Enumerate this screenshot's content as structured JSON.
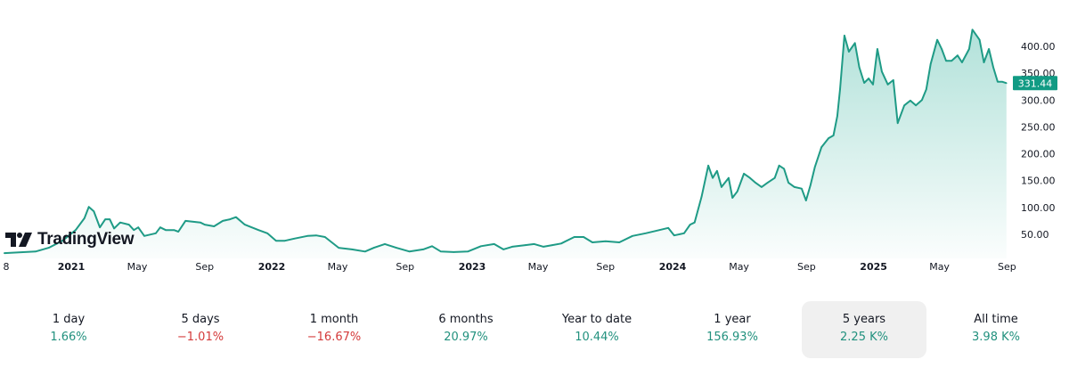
{
  "logo": {
    "text": "TradingView"
  },
  "colors": {
    "line": "#1f9b86",
    "fill": "#22ab94",
    "up": "#22917e",
    "down": "#d43a3a",
    "last_price_bg": "#119b84"
  },
  "chart_data": {
    "type": "area",
    "x_ticks": [
      {
        "label": "8",
        "date": "2020-09-01",
        "bold": false
      },
      {
        "label": "2021",
        "date": "2021-01-01",
        "bold": true
      },
      {
        "label": "May",
        "date": "2021-05-01",
        "bold": false
      },
      {
        "label": "Sep",
        "date": "2021-09-01",
        "bold": false
      },
      {
        "label": "2022",
        "date": "2022-01-01",
        "bold": true
      },
      {
        "label": "May",
        "date": "2022-05-01",
        "bold": false
      },
      {
        "label": "Sep",
        "date": "2022-09-01",
        "bold": false
      },
      {
        "label": "2023",
        "date": "2023-01-01",
        "bold": true
      },
      {
        "label": "May",
        "date": "2023-05-01",
        "bold": false
      },
      {
        "label": "Sep",
        "date": "2023-09-01",
        "bold": false
      },
      {
        "label": "2024",
        "date": "2024-01-01",
        "bold": true
      },
      {
        "label": "May",
        "date": "2024-05-01",
        "bold": false
      },
      {
        "label": "Sep",
        "date": "2024-09-01",
        "bold": false
      },
      {
        "label": "2025",
        "date": "2025-01-01",
        "bold": true
      },
      {
        "label": "May",
        "date": "2025-05-01",
        "bold": false
      },
      {
        "label": "Sep",
        "date": "2025-09-01",
        "bold": false
      }
    ],
    "y_ticks": [
      "50.00",
      "100.00",
      "150.00",
      "200.00",
      "250.00",
      "300.00",
      "350.00",
      "400.00"
    ],
    "ylim": [
      0,
      450
    ],
    "last_price": "331.44",
    "grid": false,
    "series": [
      {
        "points": [
          [
            "2020-09-01",
            15
          ],
          [
            "2020-10-28",
            18
          ],
          [
            "2020-11-21",
            25
          ],
          [
            "2020-12-16",
            38
          ],
          [
            "2021-01-09",
            58
          ],
          [
            "2021-01-25",
            80
          ],
          [
            "2021-02-02",
            101
          ],
          [
            "2021-02-11",
            93
          ],
          [
            "2021-02-22",
            63
          ],
          [
            "2021-03-04",
            78
          ],
          [
            "2021-03-12",
            78
          ],
          [
            "2021-03-20",
            61
          ],
          [
            "2021-03-31",
            72
          ],
          [
            "2021-04-16",
            68
          ],
          [
            "2021-04-25",
            58
          ],
          [
            "2021-05-03",
            63
          ],
          [
            "2021-05-14",
            47
          ],
          [
            "2021-06-04",
            52
          ],
          [
            "2021-06-12",
            63
          ],
          [
            "2021-06-22",
            58
          ],
          [
            "2021-07-07",
            58
          ],
          [
            "2021-07-15",
            55
          ],
          [
            "2021-07-28",
            75
          ],
          [
            "2021-08-24",
            72
          ],
          [
            "2021-09-01",
            68
          ],
          [
            "2021-09-18",
            65
          ],
          [
            "2021-10-04",
            75
          ],
          [
            "2021-10-17",
            78
          ],
          [
            "2021-10-28",
            82
          ],
          [
            "2021-11-13",
            68
          ],
          [
            "2021-12-08",
            58
          ],
          [
            "2021-12-24",
            52
          ],
          [
            "2022-01-09",
            38
          ],
          [
            "2022-01-25",
            38
          ],
          [
            "2022-02-11",
            42
          ],
          [
            "2022-03-07",
            47
          ],
          [
            "2022-03-23",
            48
          ],
          [
            "2022-04-08",
            45
          ],
          [
            "2022-05-03",
            25
          ],
          [
            "2022-05-27",
            22
          ],
          [
            "2022-06-20",
            18
          ],
          [
            "2022-07-06",
            25
          ],
          [
            "2022-07-26",
            32
          ],
          [
            "2022-08-16",
            25
          ],
          [
            "2022-09-09",
            18
          ],
          [
            "2022-10-04",
            22
          ],
          [
            "2022-10-20",
            28
          ],
          [
            "2022-11-05",
            18
          ],
          [
            "2022-11-29",
            17
          ],
          [
            "2022-12-24",
            18
          ],
          [
            "2023-01-17",
            28
          ],
          [
            "2023-02-10",
            32
          ],
          [
            "2023-02-27",
            22
          ],
          [
            "2023-03-15",
            27
          ],
          [
            "2023-04-08",
            30
          ],
          [
            "2023-04-24",
            32
          ],
          [
            "2023-05-11",
            27
          ],
          [
            "2023-05-27",
            30
          ],
          [
            "2023-06-12",
            33
          ],
          [
            "2023-07-06",
            45
          ],
          [
            "2023-07-23",
            45
          ],
          [
            "2023-08-08",
            35
          ],
          [
            "2023-09-01",
            37
          ],
          [
            "2023-09-26",
            35
          ],
          [
            "2023-10-20",
            47
          ],
          [
            "2023-11-13",
            52
          ],
          [
            "2023-12-08",
            58
          ],
          [
            "2023-12-24",
            62
          ],
          [
            "2024-01-04",
            48
          ],
          [
            "2024-01-22",
            52
          ],
          [
            "2024-02-02",
            68
          ],
          [
            "2024-02-10",
            72
          ],
          [
            "2024-02-23",
            121
          ],
          [
            "2024-03-06",
            178
          ],
          [
            "2024-03-14",
            155
          ],
          [
            "2024-03-22",
            168
          ],
          [
            "2024-03-30",
            138
          ],
          [
            "2024-04-12",
            155
          ],
          [
            "2024-04-19",
            118
          ],
          [
            "2024-04-28",
            130
          ],
          [
            "2024-05-10",
            163
          ],
          [
            "2024-05-21",
            155
          ],
          [
            "2024-05-31",
            146
          ],
          [
            "2024-06-11",
            138
          ],
          [
            "2024-06-22",
            146
          ],
          [
            "2024-07-05",
            155
          ],
          [
            "2024-07-13",
            178
          ],
          [
            "2024-07-22",
            172
          ],
          [
            "2024-07-30",
            146
          ],
          [
            "2024-08-10",
            138
          ],
          [
            "2024-08-23",
            135
          ],
          [
            "2024-08-31",
            113
          ],
          [
            "2024-09-08",
            141
          ],
          [
            "2024-09-16",
            175
          ],
          [
            "2024-09-28",
            212
          ],
          [
            "2024-10-11",
            229
          ],
          [
            "2024-10-20",
            234
          ],
          [
            "2024-10-27",
            270
          ],
          [
            "2024-11-01",
            320
          ],
          [
            "2024-11-09",
            420
          ],
          [
            "2024-11-17",
            390
          ],
          [
            "2024-11-28",
            406
          ],
          [
            "2024-12-06",
            361
          ],
          [
            "2024-12-15",
            332
          ],
          [
            "2024-12-23",
            340
          ],
          [
            "2024-12-31",
            329
          ],
          [
            "2025-01-08",
            395
          ],
          [
            "2025-01-16",
            353
          ],
          [
            "2025-01-27",
            329
          ],
          [
            "2025-02-06",
            337
          ],
          [
            "2025-02-14",
            257
          ],
          [
            "2025-02-26",
            290
          ],
          [
            "2025-03-09",
            299
          ],
          [
            "2025-03-19",
            290
          ],
          [
            "2025-03-30",
            300
          ],
          [
            "2025-04-07",
            320
          ],
          [
            "2025-04-15",
            367
          ],
          [
            "2025-04-27",
            412
          ],
          [
            "2025-05-05",
            395
          ],
          [
            "2025-05-13",
            373
          ],
          [
            "2025-05-23",
            373
          ],
          [
            "2025-06-03",
            383
          ],
          [
            "2025-06-11",
            370
          ],
          [
            "2025-06-24",
            395
          ],
          [
            "2025-06-30",
            431
          ],
          [
            "2025-07-13",
            412
          ],
          [
            "2025-07-21",
            370
          ],
          [
            "2025-07-30",
            395
          ],
          [
            "2025-08-07",
            361
          ],
          [
            "2025-08-15",
            334
          ],
          [
            "2025-08-23",
            334
          ],
          [
            "2025-08-31",
            331.44
          ]
        ]
      }
    ]
  },
  "periods": [
    {
      "label": "1 day",
      "value": "1.66%",
      "dir": "up",
      "active": false
    },
    {
      "label": "5 days",
      "value": "−1.01%",
      "dir": "down",
      "active": false
    },
    {
      "label": "1 month",
      "value": "−16.67%",
      "dir": "down",
      "active": false
    },
    {
      "label": "6 months",
      "value": "20.97%",
      "dir": "up",
      "active": false
    },
    {
      "label": "Year to date",
      "value": "10.44%",
      "dir": "up",
      "active": false
    },
    {
      "label": "1 year",
      "value": "156.93%",
      "dir": "up",
      "active": false
    },
    {
      "label": "5 years",
      "value": "2.25 K%",
      "dir": "up",
      "active": true
    },
    {
      "label": "All time",
      "value": "3.98 K%",
      "dir": "up",
      "active": false
    }
  ]
}
